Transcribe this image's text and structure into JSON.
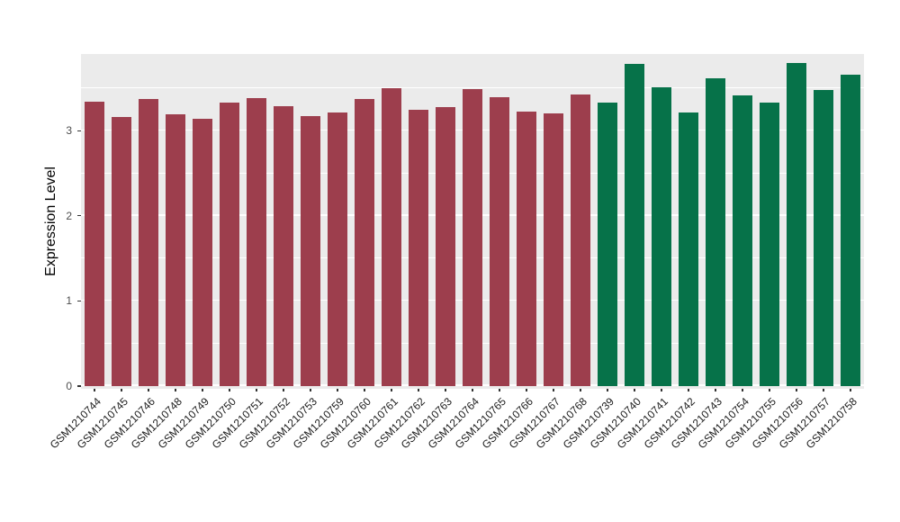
{
  "chart_data": {
    "type": "bar",
    "title": "",
    "xlabel": "",
    "ylabel": "Expression Level",
    "ylim": [
      0,
      3.9
    ],
    "yticks": [
      0,
      1,
      2,
      3
    ],
    "grid": {
      "color": "#FFFFFF",
      "major": [
        0,
        1,
        2,
        3
      ],
      "minor": [
        0.5,
        1.5,
        2.5,
        3.5
      ]
    },
    "panel_background": "#EBEBEB",
    "figure_background": "#FFFFFF",
    "legend": "none",
    "bar_groups": [
      {
        "color": "#9D3E4D",
        "bars": [
          {
            "label": "GSM1210744",
            "value": 3.34
          },
          {
            "label": "GSM1210745",
            "value": 3.16
          },
          {
            "label": "GSM1210746",
            "value": 3.37
          },
          {
            "label": "GSM1210748",
            "value": 3.19
          },
          {
            "label": "GSM1210749",
            "value": 3.14
          },
          {
            "label": "GSM1210750",
            "value": 3.33
          },
          {
            "label": "GSM1210751",
            "value": 3.38
          },
          {
            "label": "GSM1210752",
            "value": 3.29
          },
          {
            "label": "GSM1210753",
            "value": 3.17
          },
          {
            "label": "GSM1210759",
            "value": 3.21
          },
          {
            "label": "GSM1210760",
            "value": 3.37
          },
          {
            "label": "GSM1210761",
            "value": 3.5
          },
          {
            "label": "GSM1210762",
            "value": 3.25
          },
          {
            "label": "GSM1210763",
            "value": 3.28
          },
          {
            "label": "GSM1210764",
            "value": 3.49
          },
          {
            "label": "GSM1210765",
            "value": 3.39
          },
          {
            "label": "GSM1210766",
            "value": 3.22
          },
          {
            "label": "GSM1210767",
            "value": 3.2
          },
          {
            "label": "GSM1210768",
            "value": 3.42
          }
        ]
      },
      {
        "color": "#067249",
        "bars": [
          {
            "label": "GSM1210739",
            "value": 3.33
          },
          {
            "label": "GSM1210740",
            "value": 3.78
          },
          {
            "label": "GSM1210741",
            "value": 3.51
          },
          {
            "label": "GSM1210742",
            "value": 3.21
          },
          {
            "label": "GSM1210743",
            "value": 3.61
          },
          {
            "label": "GSM1210754",
            "value": 3.41
          },
          {
            "label": "GSM1210755",
            "value": 3.33
          },
          {
            "label": "GSM1210756",
            "value": 3.79
          },
          {
            "label": "GSM1210757",
            "value": 3.48
          },
          {
            "label": "GSM1210758",
            "value": 3.66
          }
        ]
      }
    ]
  }
}
